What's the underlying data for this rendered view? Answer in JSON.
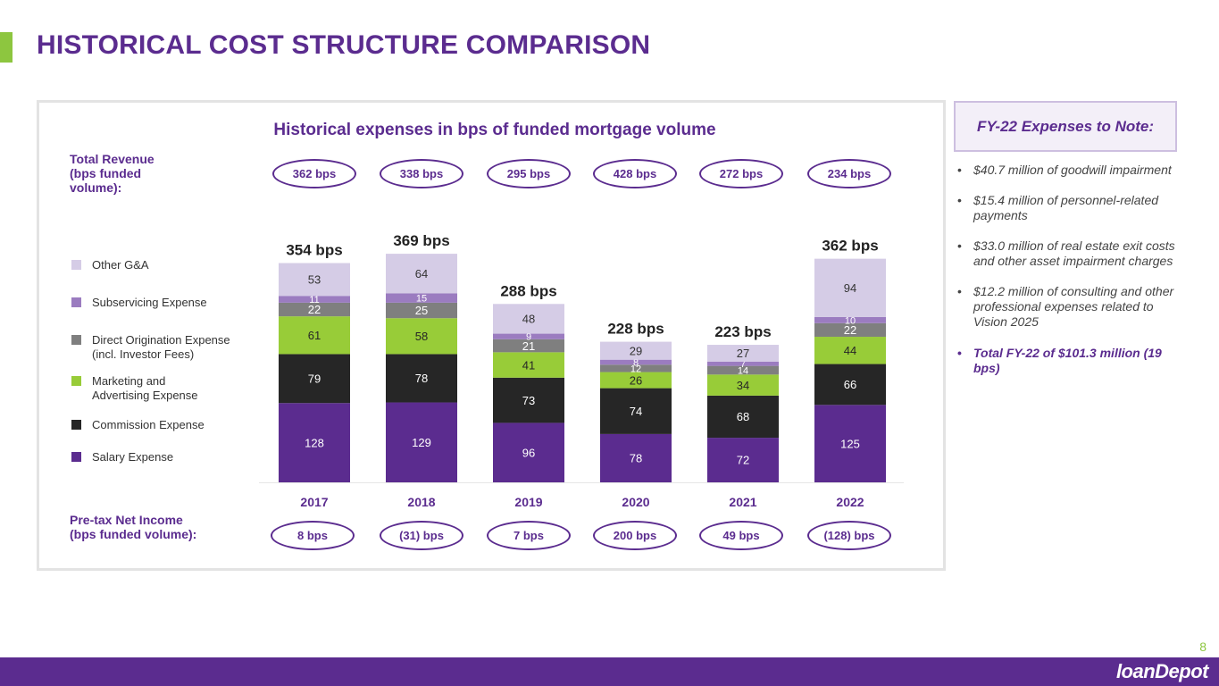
{
  "page": {
    "title": "HISTORICAL COST STRUCTURE COMPARISON",
    "page_number": "8"
  },
  "side": {
    "total_revenue": "Total Revenue (bps funded volume):",
    "pretax_income": "Pre-tax Net Income (bps funded volume):"
  },
  "revenue_pills": [
    "362 bps",
    "338 bps",
    "295 bps",
    "428 bps",
    "272 bps",
    "234 bps"
  ],
  "income_pills": [
    "8 bps",
    "(31) bps",
    "7 bps",
    "200 bps",
    "49 bps",
    "(128) bps"
  ],
  "legend": [
    {
      "label": "Other G&A",
      "color": "#d5cce6"
    },
    {
      "label": "Subservicing Expense",
      "color": "#9b7cc0"
    },
    {
      "label": "Direct Origination Expense (incl. Investor Fees)",
      "color": "#7f7f7f"
    },
    {
      "label": "Marketing and Advertising Expense",
      "color": "#98cc38"
    },
    {
      "label": "Commission Expense",
      "color": "#262626"
    },
    {
      "label": "Salary Expense",
      "color": "#5b2c8f"
    }
  ],
  "chart_data": {
    "type": "bar",
    "stacked": true,
    "title": "Historical expenses in bps of funded mortgage volume",
    "categories": [
      "2017",
      "2018",
      "2019",
      "2020",
      "2021",
      "2022"
    ],
    "totals": [
      "354 bps",
      "369 bps",
      "288 bps",
      "228 bps",
      "223 bps",
      "362 bps"
    ],
    "series": [
      {
        "name": "Salary Expense",
        "color": "#5b2c8f",
        "label_color": "#ffffff",
        "values": [
          128,
          129,
          96,
          78,
          72,
          125
        ]
      },
      {
        "name": "Commission Expense",
        "color": "#262626",
        "label_color": "#ffffff",
        "values": [
          79,
          78,
          73,
          74,
          68,
          66
        ]
      },
      {
        "name": "Marketing and Advertising Expense",
        "color": "#98cc38",
        "label_color": "#262626",
        "values": [
          61,
          58,
          41,
          26,
          34,
          44
        ]
      },
      {
        "name": "Direct Origination Expense (incl. Investor Fees)",
        "color": "#7f7f7f",
        "label_color": "#ffffff",
        "values": [
          22,
          25,
          21,
          12,
          14,
          22
        ]
      },
      {
        "name": "Subservicing Expense",
        "color": "#9b7cc0",
        "label_color": "#ffffff",
        "values": [
          11,
          15,
          9,
          8,
          7,
          10
        ]
      },
      {
        "name": "Other G&A",
        "color": "#d5cce6",
        "label_color": "#333333",
        "values": [
          53,
          64,
          48,
          29,
          27,
          94
        ]
      }
    ],
    "ylim": [
      0,
      400
    ]
  },
  "notes": {
    "title": "FY-22 Expenses to Note:",
    "items": [
      "$40.7 million of goodwill impairment",
      "$15.4 million of personnel-related payments",
      "$33.0 million of real estate exit costs and other asset impairment charges",
      "$12.2 million of consulting and other professional expenses related to Vision 2025"
    ],
    "summary": "Total FY-22 of $101.3 million (19 bps)"
  },
  "footer": {
    "logo": "loanDepot"
  }
}
